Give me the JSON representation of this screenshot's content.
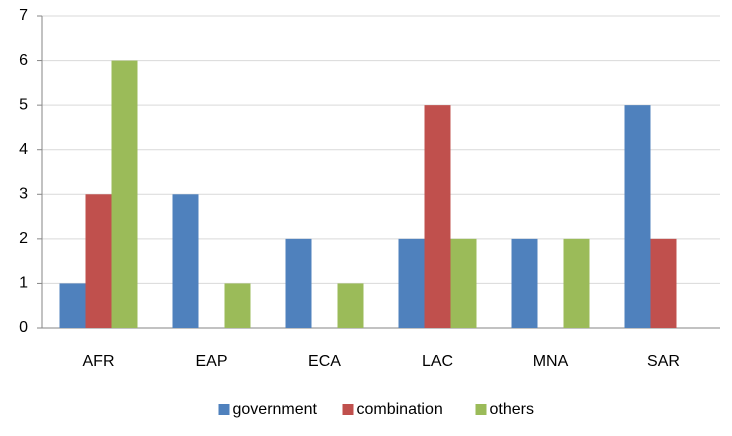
{
  "chart_data": {
    "type": "bar",
    "categories": [
      "AFR",
      "EAP",
      "ECA",
      "LAC",
      "MNA",
      "SAR"
    ],
    "series": [
      {
        "name": "government",
        "color": "#4f81bd",
        "values": [
          1,
          3,
          2,
          2,
          2,
          5
        ]
      },
      {
        "name": "combination",
        "color": "#c0504d",
        "values": [
          3,
          0,
          0,
          5,
          0,
          2
        ]
      },
      {
        "name": "others",
        "color": "#9bbb59",
        "values": [
          6,
          1,
          1,
          2,
          2,
          0
        ]
      }
    ],
    "ylim": [
      0,
      7
    ],
    "yticks": [
      0,
      1,
      2,
      3,
      4,
      5,
      6,
      7
    ],
    "grid": true,
    "legend": "bottom"
  }
}
